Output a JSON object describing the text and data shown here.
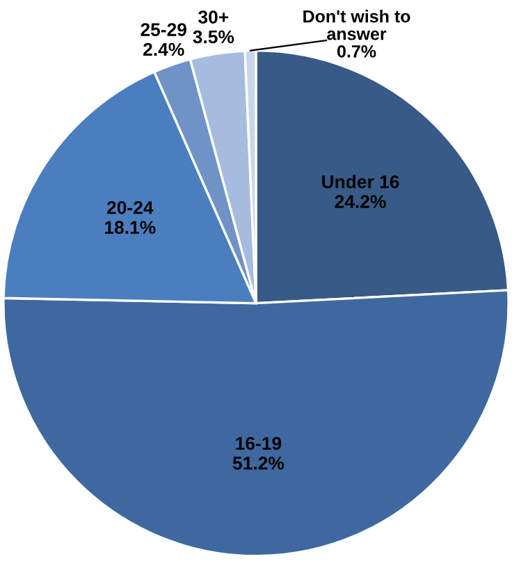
{
  "chart_data": {
    "type": "pie",
    "categories": [
      "Under 16",
      "16-19",
      "20-24",
      "25-29",
      "30+",
      "Don't wish to answer"
    ],
    "values": [
      24.2,
      51.2,
      18.1,
      2.4,
      3.5,
      0.7
    ],
    "value_labels": [
      "24.2%",
      "51.2%",
      "18.1%",
      "2.4%",
      "3.5%",
      "0.7%"
    ],
    "colors": [
      "#375a87",
      "#3f68a0",
      "#4a7ebf",
      "#6f92c7",
      "#a6bcdf",
      "#c9d6ea"
    ]
  }
}
